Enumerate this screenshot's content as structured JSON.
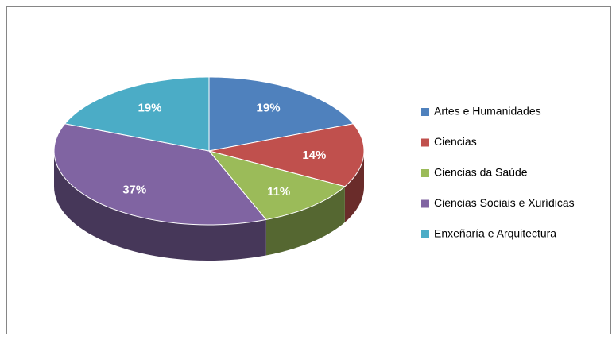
{
  "chart_data": {
    "type": "pie",
    "categories": [
      "Artes e Humanidades",
      "Ciencias",
      "Ciencias da Saúde",
      "Ciencias Sociais e Xurídicas",
      "Enxeñaría e Arquitectura"
    ],
    "values": [
      19,
      14,
      11,
      37,
      19
    ],
    "value_labels": [
      "19%",
      "14%",
      "11%",
      "37%",
      "19%"
    ],
    "colors": [
      "#4f81bd",
      "#c0504d",
      "#9bbb59",
      "#8064a2",
      "#4bacc6"
    ],
    "legend": "right"
  }
}
